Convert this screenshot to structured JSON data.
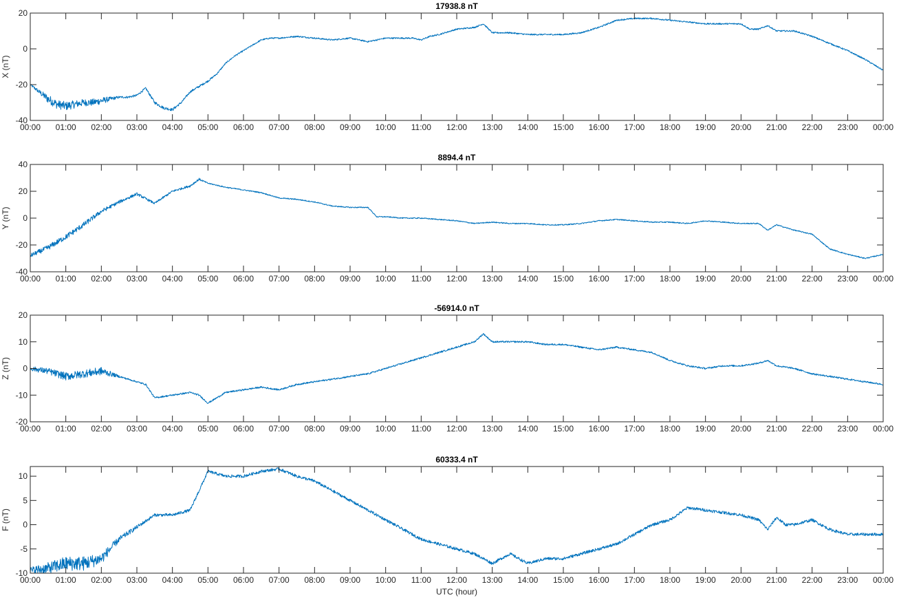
{
  "chart_data": [
    {
      "type": "line",
      "title": "17938.8 nT",
      "ylabel": "X (nT)",
      "xlabel": "",
      "ylim": [
        -40,
        20
      ],
      "yticks": [
        -40,
        -20,
        0,
        20
      ],
      "grid": false,
      "series": [
        {
          "color": "#0072BD",
          "x": [
            0.0,
            0.25,
            0.5,
            0.75,
            1.0,
            1.25,
            1.5,
            1.75,
            2.0,
            2.25,
            2.5,
            2.75,
            3.0,
            3.25,
            3.5,
            3.75,
            4.0,
            4.25,
            4.5,
            4.75,
            5.0,
            5.25,
            5.5,
            5.75,
            6.0,
            6.25,
            6.5,
            6.75,
            7.0,
            7.5,
            8.0,
            8.5,
            9.0,
            9.5,
            10.0,
            10.5,
            10.75,
            11.0,
            11.25,
            11.5,
            12.0,
            12.5,
            12.75,
            13.0,
            13.5,
            14.0,
            14.5,
            15.0,
            15.5,
            16.0,
            16.5,
            17.0,
            17.5,
            18.0,
            18.5,
            19.0,
            19.5,
            20.0,
            20.25,
            20.5,
            20.75,
            21.0,
            21.5,
            22.0,
            22.5,
            23.0,
            23.5,
            24.0
          ],
          "y": [
            -20,
            -24,
            -28,
            -31,
            -32,
            -31,
            -30,
            -30,
            -29,
            -28,
            -27,
            -27,
            -26,
            -22,
            -30,
            -33,
            -34,
            -30,
            -24,
            -21,
            -18,
            -14,
            -8,
            -4,
            -1,
            2,
            5,
            6,
            6,
            7,
            6,
            5,
            6,
            4,
            6,
            6,
            6,
            5,
            7,
            8,
            11,
            12,
            14,
            9,
            9,
            8,
            8,
            8,
            9,
            12,
            16,
            17,
            17,
            16,
            15,
            14,
            14,
            14,
            11,
            11,
            13,
            10,
            10,
            7,
            3,
            -1,
            -6,
            -12
          ],
          "noise": [
            0.5,
            1.2,
            2.5,
            2.5,
            2.5,
            2.2,
            2.0,
            2.0,
            2.0,
            1.2,
            0.6,
            0.6,
            0.6,
            0.6,
            0.8,
            0.8,
            0.8,
            0.6,
            0.6,
            0.6,
            0.6,
            0.4,
            0.4,
            0.4,
            0.4,
            0.4,
            0.4,
            0.4,
            0.4,
            0.4,
            0.4,
            0.4,
            0.4,
            0.4,
            0.4,
            0.4,
            0.4,
            0.4,
            0.4,
            0.4,
            0.4,
            0.4,
            0.4,
            0.4,
            0.4,
            0.4,
            0.4,
            0.4,
            0.4,
            0.4,
            0.4,
            0.4,
            0.4,
            0.4,
            0.4,
            0.4,
            0.4,
            0.4,
            0.4,
            0.4,
            0.4,
            0.4,
            0.4,
            0.4,
            0.4,
            0.4,
            0.4,
            0.4
          ]
        }
      ]
    },
    {
      "type": "line",
      "title": "8894.4 nT",
      "ylabel": "Y (nT)",
      "xlabel": "",
      "ylim": [
        -40,
        40
      ],
      "yticks": [
        -40,
        -20,
        0,
        20,
        40
      ],
      "grid": false,
      "series": [
        {
          "color": "#0072BD",
          "x": [
            0.0,
            0.5,
            1.0,
            1.5,
            2.0,
            2.5,
            3.0,
            3.5,
            4.0,
            4.5,
            4.75,
            5.0,
            5.5,
            6.0,
            6.5,
            7.0,
            7.5,
            8.0,
            8.5,
            9.0,
            9.5,
            9.75,
            10.0,
            10.5,
            11.0,
            11.5,
            12.0,
            12.5,
            13.0,
            13.5,
            14.0,
            14.5,
            15.0,
            15.5,
            16.0,
            16.5,
            17.0,
            17.5,
            18.0,
            18.5,
            19.0,
            19.5,
            20.0,
            20.5,
            20.75,
            21.0,
            21.5,
            22.0,
            22.5,
            23.0,
            23.5,
            24.0
          ],
          "y": [
            -28,
            -22,
            -14,
            -5,
            5,
            12,
            18,
            11,
            20,
            24,
            29,
            26,
            23,
            21,
            19,
            15,
            14,
            12,
            9,
            8,
            8,
            1,
            1,
            0,
            0,
            -1,
            -2,
            -4,
            -3,
            -4,
            -4,
            -5,
            -5,
            -4,
            -2,
            -1,
            -2,
            -3,
            -3,
            -4,
            -2,
            -3,
            -4,
            -4,
            -9,
            -5,
            -9,
            -12,
            -23,
            -27,
            -30,
            -27
          ],
          "noise": [
            1.5,
            2.0,
            2.0,
            2.0,
            1.5,
            1.2,
            1.0,
            0.8,
            0.8,
            0.8,
            0.8,
            0.4,
            0.4,
            0.4,
            0.4,
            0.4,
            0.4,
            0.4,
            0.4,
            0.4,
            0.4,
            0.4,
            0.4,
            0.4,
            0.4,
            0.4,
            0.4,
            0.4,
            0.4,
            0.4,
            0.4,
            0.4,
            0.4,
            0.4,
            0.4,
            0.4,
            0.4,
            0.4,
            0.4,
            0.4,
            0.4,
            0.4,
            0.4,
            0.4,
            0.4,
            0.4,
            0.4,
            0.4,
            0.4,
            0.4,
            0.4,
            0.4
          ]
        }
      ]
    },
    {
      "type": "line",
      "title": "-56914.0 nT",
      "ylabel": "Z (nT)",
      "xlabel": "",
      "ylim": [
        -20,
        20
      ],
      "yticks": [
        -20,
        -10,
        0,
        10,
        20
      ],
      "grid": false,
      "series": [
        {
          "color": "#0072BD",
          "x": [
            0.0,
            0.5,
            1.0,
            1.5,
            2.0,
            2.25,
            2.5,
            2.75,
            3.0,
            3.25,
            3.5,
            4.0,
            4.5,
            4.75,
            5.0,
            5.25,
            5.5,
            6.0,
            6.5,
            7.0,
            7.5,
            8.0,
            8.5,
            9.0,
            9.5,
            10.0,
            10.5,
            11.0,
            11.5,
            12.0,
            12.5,
            12.75,
            13.0,
            13.5,
            14.0,
            14.5,
            15.0,
            15.5,
            16.0,
            16.5,
            17.0,
            17.5,
            18.0,
            18.5,
            19.0,
            19.5,
            20.0,
            20.5,
            20.75,
            21.0,
            21.5,
            22.0,
            22.5,
            23.0,
            23.5,
            24.0
          ],
          "y": [
            0,
            -1,
            -3,
            -2,
            -1,
            -2,
            -3,
            -4,
            -5,
            -6,
            -11,
            -10,
            -9,
            -10,
            -13,
            -11,
            -9,
            -8,
            -7,
            -8,
            -6,
            -5,
            -4,
            -3,
            -2,
            0,
            2,
            4,
            6,
            8,
            10,
            13,
            10,
            10,
            10,
            9,
            9,
            8,
            7,
            8,
            7,
            6,
            3,
            1,
            0,
            1,
            1,
            2,
            3,
            1,
            0,
            -2,
            -3,
            -4,
            -5,
            -6
          ],
          "noise": [
            0.8,
            1.2,
            1.5,
            1.5,
            1.5,
            1.0,
            0.4,
            0.3,
            0.3,
            0.3,
            0.3,
            0.3,
            0.3,
            0.3,
            0.3,
            0.3,
            0.3,
            0.3,
            0.3,
            0.3,
            0.3,
            0.3,
            0.3,
            0.3,
            0.3,
            0.3,
            0.3,
            0.3,
            0.3,
            0.3,
            0.3,
            0.3,
            0.3,
            0.3,
            0.3,
            0.3,
            0.3,
            0.3,
            0.3,
            0.3,
            0.3,
            0.3,
            0.3,
            0.3,
            0.3,
            0.3,
            0.3,
            0.3,
            0.3,
            0.3,
            0.3,
            0.3,
            0.3,
            0.3,
            0.3,
            0.3
          ]
        }
      ]
    },
    {
      "type": "line",
      "title": "60333.4 nT",
      "ylabel": "F (nT)",
      "xlabel": "UTC (hour)",
      "ylim": [
        -10,
        12
      ],
      "yticks": [
        -10,
        -5,
        0,
        5,
        10
      ],
      "grid": false,
      "series": [
        {
          "color": "#0072BD",
          "x": [
            0.0,
            0.5,
            1.0,
            1.5,
            2.0,
            2.5,
            3.0,
            3.5,
            4.0,
            4.5,
            4.75,
            5.0,
            5.5,
            6.0,
            6.5,
            7.0,
            7.5,
            8.0,
            8.5,
            9.0,
            9.5,
            10.0,
            10.5,
            11.0,
            11.5,
            12.0,
            12.5,
            12.75,
            13.0,
            13.5,
            14.0,
            14.5,
            15.0,
            15.5,
            16.0,
            16.5,
            17.0,
            17.5,
            18.0,
            18.5,
            19.0,
            19.5,
            20.0,
            20.5,
            20.75,
            21.0,
            21.25,
            21.5,
            22.0,
            22.5,
            23.0,
            23.5,
            24.0
          ],
          "y": [
            -9.5,
            -9,
            -8,
            -8,
            -7,
            -3,
            -0.5,
            2,
            2,
            3,
            7,
            11,
            10,
            10,
            11,
            11.5,
            10,
            9,
            7,
            5,
            3,
            1,
            -1,
            -3,
            -4,
            -5,
            -6,
            -7,
            -8,
            -6,
            -8,
            -7,
            -7,
            -6,
            -5,
            -4,
            -2,
            0,
            1,
            3.5,
            3,
            2.5,
            2,
            1,
            -1,
            1.5,
            0,
            0,
            1,
            -1,
            -2,
            -2,
            -2
          ],
          "noise": [
            0.8,
            1.2,
            1.5,
            1.5,
            1.2,
            0.6,
            0.4,
            0.3,
            0.3,
            0.3,
            0.3,
            0.3,
            0.3,
            0.3,
            0.3,
            0.3,
            0.3,
            0.3,
            0.3,
            0.3,
            0.3,
            0.3,
            0.3,
            0.3,
            0.3,
            0.3,
            0.3,
            0.3,
            0.3,
            0.3,
            0.3,
            0.3,
            0.3,
            0.3,
            0.3,
            0.3,
            0.3,
            0.3,
            0.3,
            0.3,
            0.3,
            0.3,
            0.3,
            0.3,
            0.3,
            0.3,
            0.3,
            0.3,
            0.3,
            0.3,
            0.3,
            0.3,
            0.3
          ]
        }
      ]
    }
  ],
  "shared_x": {
    "xlim": [
      0,
      24
    ],
    "tick_labels": [
      "00:00",
      "01:00",
      "02:00",
      "03:00",
      "04:00",
      "05:00",
      "06:00",
      "07:00",
      "08:00",
      "09:00",
      "10:00",
      "11:00",
      "12:00",
      "13:00",
      "14:00",
      "15:00",
      "16:00",
      "17:00",
      "18:00",
      "19:00",
      "20:00",
      "21:00",
      "22:00",
      "23:00",
      "00:00"
    ]
  }
}
